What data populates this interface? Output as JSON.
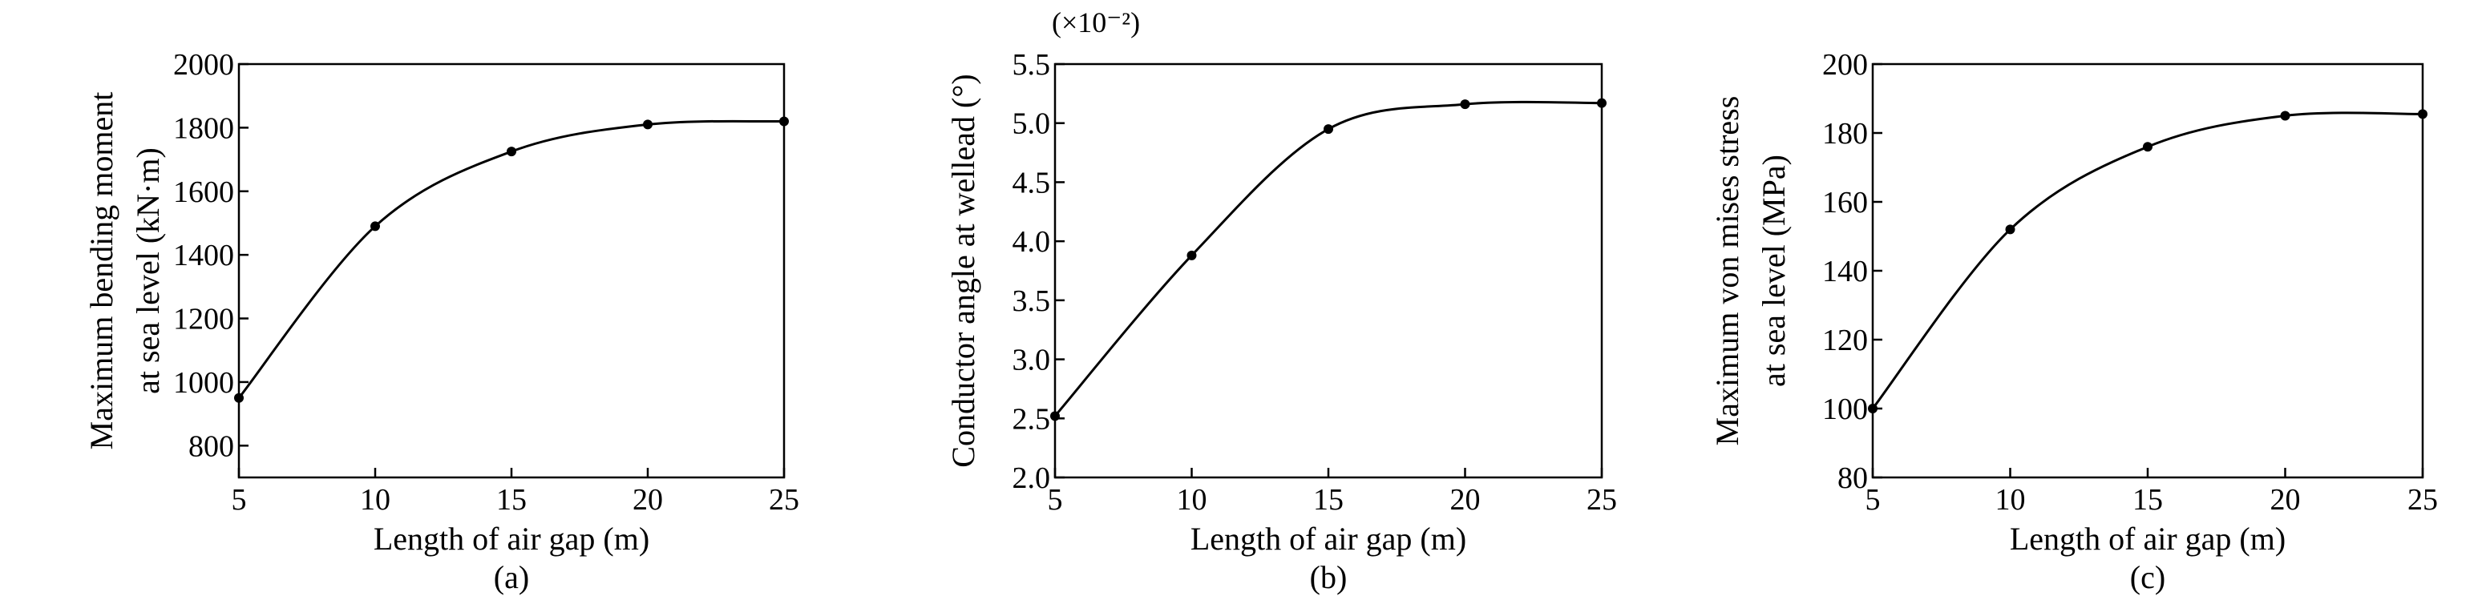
{
  "chart_data": [
    {
      "type": "line",
      "panel_label": "(a)",
      "xlabel": "Length of air gap (m)",
      "ylabel_lines": [
        "Maximum bending moment",
        "at sea level (kN·m)"
      ],
      "multiplier": "",
      "x": [
        5,
        10,
        15,
        20,
        25
      ],
      "xlim": [
        5,
        25
      ],
      "xticks": [
        5,
        10,
        15,
        20,
        25
      ],
      "ylim": [
        700,
        2000
      ],
      "yticks": [
        800,
        1000,
        1200,
        1400,
        1600,
        1800,
        2000
      ],
      "ytick_labels": [
        "800",
        "1000",
        "1200",
        "1400",
        "1600",
        "1800",
        "2000"
      ],
      "series": [
        {
          "values": [
            950,
            1490,
            1725,
            1810,
            1820
          ]
        }
      ],
      "grid": false
    },
    {
      "type": "line",
      "panel_label": "(b)",
      "xlabel": "Length of air gap (m)",
      "ylabel_lines": [
        "Conductor angle at wellead (°)"
      ],
      "multiplier": "(×10⁻²)",
      "x": [
        5,
        10,
        15,
        20,
        25
      ],
      "xlim": [
        5,
        25
      ],
      "xticks": [
        5,
        10,
        15,
        20,
        25
      ],
      "ylim": [
        2.0,
        5.5
      ],
      "yticks": [
        2.0,
        2.5,
        3.0,
        3.5,
        4.0,
        4.5,
        5.0,
        5.5
      ],
      "ytick_labels": [
        "2.0",
        "2.5",
        "3.0",
        "3.5",
        "4.0",
        "4.5",
        "5.0",
        "5.5"
      ],
      "series": [
        {
          "values": [
            2.52,
            3.88,
            4.95,
            5.16,
            5.17
          ]
        }
      ],
      "grid": false
    },
    {
      "type": "line",
      "panel_label": "(c)",
      "xlabel": "Length of air gap (m)",
      "ylabel_lines": [
        "Maximum von mises stress",
        "at sea level (MPa)"
      ],
      "multiplier": "",
      "x": [
        5,
        10,
        15,
        20,
        25
      ],
      "xlim": [
        5,
        25
      ],
      "xticks": [
        5,
        10,
        15,
        20,
        25
      ],
      "ylim": [
        80,
        200
      ],
      "yticks": [
        80,
        100,
        120,
        140,
        160,
        180,
        200
      ],
      "ytick_labels": [
        "80",
        "100",
        "120",
        "140",
        "160",
        "180",
        "200"
      ],
      "series": [
        {
          "values": [
            100,
            152,
            176,
            185,
            185.5
          ]
        }
      ],
      "grid": false
    }
  ]
}
